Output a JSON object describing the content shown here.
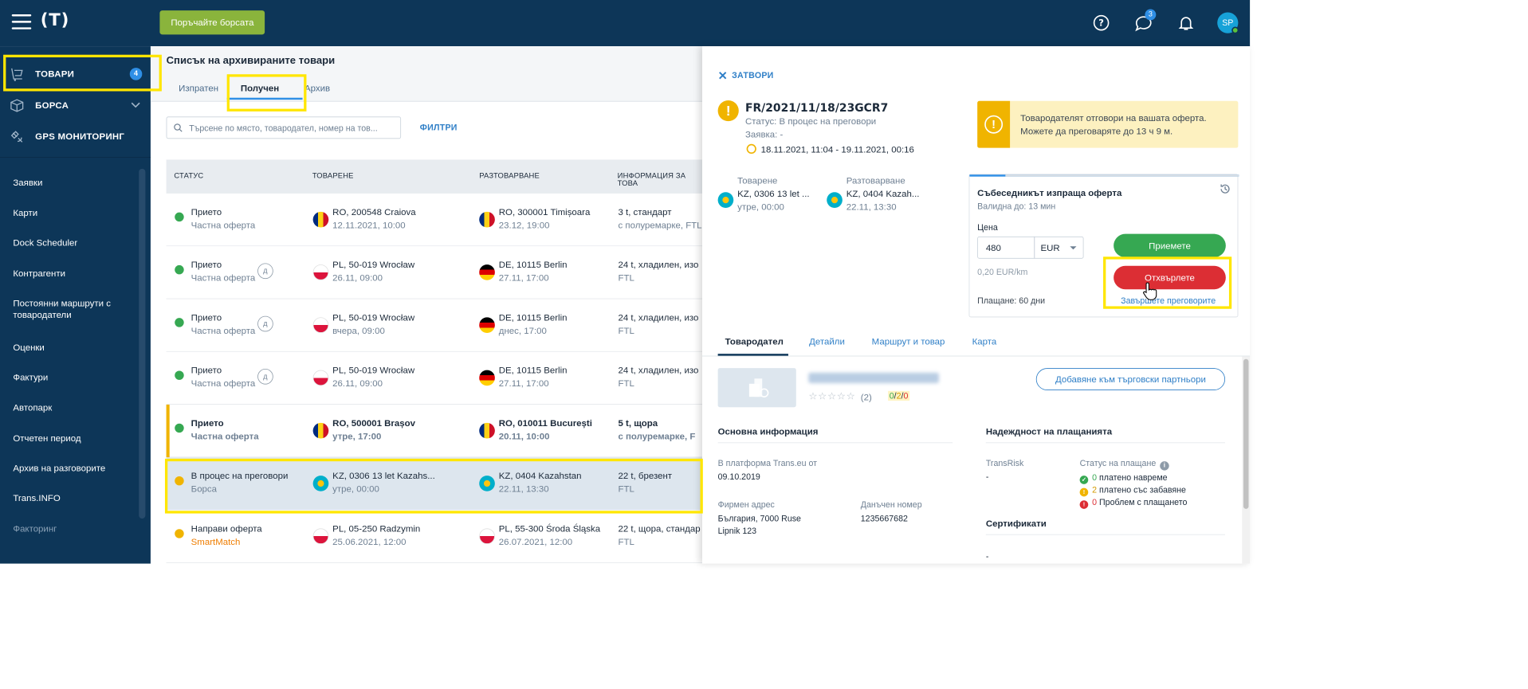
{
  "topbar": {
    "logo": "(T)",
    "buy_button": "Поръчайте борсата",
    "messages_count": "3",
    "avatar_initials": "SP"
  },
  "sidebar": {
    "main": [
      {
        "label": "ТОВАРИ",
        "badge": "4",
        "icon": "cargo-icon"
      },
      {
        "label": "БОРСА",
        "icon": "box-icon"
      },
      {
        "label": "GPS МОНИТОРИНГ",
        "icon": "satellite-icon"
      }
    ],
    "items": [
      "Заявки",
      "Карти",
      "Dock Scheduler",
      "Контрагенти",
      "Постоянни маршрути с товародатели",
      "Оценки",
      "Фактури",
      "Автопарк",
      "Отчетен период",
      "Архив на разговорите",
      "Trans.INFO",
      "Факторинг"
    ]
  },
  "list": {
    "title": "Списък на архивираните товари",
    "tabs": [
      "Изпратен",
      "Получен",
      "Архив"
    ],
    "search_placeholder": "Търсене по място, товародател, номер на тов...",
    "filters_label": "ФИЛТРИ",
    "columns": [
      "СТАТУС",
      "ТОВАРЕНЕ",
      "РАЗТОВАРВАНЕ",
      "ИНФОРМАЦИЯ ЗА ТОВА"
    ],
    "rows": [
      {
        "status": "Прието",
        "status_sub": "Частна оферта",
        "load_place": "RO, 200548 Craiova",
        "load_date": "12.11.2021, 10:00",
        "load_flag": "RO",
        "unload_place": "RO, 300001 Timișoara",
        "unload_date": "23.12, 19:00",
        "unload_flag": "RO",
        "info": "3 t, стандарт",
        "info_sub": "с полуремарке, FTL"
      },
      {
        "status": "Прието",
        "status_sub": "Частна оферта",
        "d_badge": "д",
        "load_place": "PL, 50-019 Wrocław",
        "load_date": "26.11, 09:00",
        "load_flag": "PL",
        "unload_place": "DE, 10115 Berlin",
        "unload_date": "27.11, 17:00",
        "unload_flag": "DE",
        "info": "24 t, хладилен, изо",
        "info_sub": "FTL"
      },
      {
        "status": "Прието",
        "status_sub": "Частна оферта",
        "d_badge": "д",
        "load_place": "PL, 50-019 Wrocław",
        "load_date": "вчера, 09:00",
        "load_flag": "PL",
        "unload_place": "DE, 10115 Berlin",
        "unload_date": "днес, 17:00",
        "unload_flag": "DE",
        "info": "24 t, хладилен, изо",
        "info_sub": "FTL"
      },
      {
        "status": "Прието",
        "status_sub": "Частна оферта",
        "d_badge": "д",
        "load_place": "PL, 50-019 Wrocław",
        "load_date": "26.11, 09:00",
        "load_flag": "PL",
        "unload_place": "DE, 10115 Berlin",
        "unload_date": "27.11, 17:00",
        "unload_flag": "DE",
        "info": "24 t, хладилен, изо",
        "info_sub": "FTL"
      },
      {
        "status": "Прието",
        "status_sub": "Частна оферта",
        "load_place": "RO, 500001 Brașov",
        "load_date": "утре, 17:00",
        "load_flag": "RO",
        "unload_place": "RO, 010011 București",
        "unload_date": "20.11, 10:00",
        "unload_flag": "RO",
        "info": "5 t, щора",
        "info_sub": "с полуремарке, F"
      },
      {
        "status": "В процес на преговори",
        "status_sub": "Борса",
        "load_place": "KZ, 0306 13 let Kazahs...",
        "load_date": "утре, 00:00",
        "load_flag": "KZ",
        "unload_place": "KZ, 0404 Kazahstan",
        "unload_date": "22.11, 13:30",
        "unload_flag": "KZ",
        "info": "22 t, брезент",
        "info_sub": "FTL"
      },
      {
        "status": "Направи оферта",
        "status_sub": "SmartMatch",
        "load_place": "PL, 05-250 Radzymin",
        "load_date": "25.06.2021, 12:00",
        "load_flag": "PL",
        "unload_place": "PL, 55-300 Środa Śląska",
        "unload_date": "26.07.2021, 12:00",
        "unload_flag": "PL",
        "info": "22 t, щора, стандар",
        "info_sub": "FTL"
      }
    ]
  },
  "detail": {
    "close_label": "ЗАТВОРИ",
    "ref": "FR/2021/11/18/23GCR7",
    "status_line": "Статус: В процес на преговори",
    "request_line": "Заявка: -",
    "dates": "18.11.2021, 11:04 - 19.11.2021, 00:16",
    "banner_text": "Товародателят отговори на вашата оферта. Можете да преговаряте до 13 ч 9 м.",
    "loading": {
      "label": "Товарене",
      "place": "KZ, 0306 13 let ...",
      "time": "утре, 00:00"
    },
    "unloading": {
      "label": "Разтоварване",
      "place": "KZ, 0404 Kazah...",
      "time": "22.11, 13:30"
    },
    "offer": {
      "title": "Събеседникът изпраща оферта",
      "valid": "Валидна до: 13 мин",
      "price_label": "Цена",
      "price_value": "480",
      "currency": "EUR",
      "per_km": "0,20 EUR/km",
      "payment": "Плащане: 60 дни",
      "accept": "Приемете",
      "reject": "Отхвърлете",
      "end_negotiations": "Завършете преговорите"
    },
    "tabs": [
      "Товародател",
      "Детайли",
      "Маршрут и товар",
      "Карта"
    ],
    "company": {
      "reviews_count": "(2)",
      "rating_good": "0",
      "rating_mid": "2",
      "rating_bad": "0",
      "add_partner": "Добавяне към търговски партньори"
    },
    "basic_info_title": "Основна информация",
    "platform_label": "В платформа Trans.eu от",
    "platform_value": "09.10.2019",
    "address_label": "Фирмен адрес",
    "address_line1": "България, 7000 Ruse",
    "address_line2": "Lipnik 123",
    "tax_label": "Данъчен номер",
    "tax_value": "1235667682",
    "reliability_title": "Надеждност на плащанията",
    "transrisk_label": "TransRisk",
    "transrisk_value": "-",
    "payment_status_label": "Статус на плащане",
    "legend": [
      {
        "count": "0",
        "text": "платено навреме"
      },
      {
        "count": "2",
        "text": "платено със забавяне"
      },
      {
        "count": "0",
        "text": "Проблем с плащането"
      }
    ],
    "certificates_title": "Сертификати",
    "certificates_value": "-"
  },
  "colors": {
    "navy": "#0d3658",
    "accent": "#2f8fe6",
    "green": "#36a852",
    "red": "#dc2e34",
    "yellow": "#f0b400",
    "highlight": "#ffe600"
  }
}
